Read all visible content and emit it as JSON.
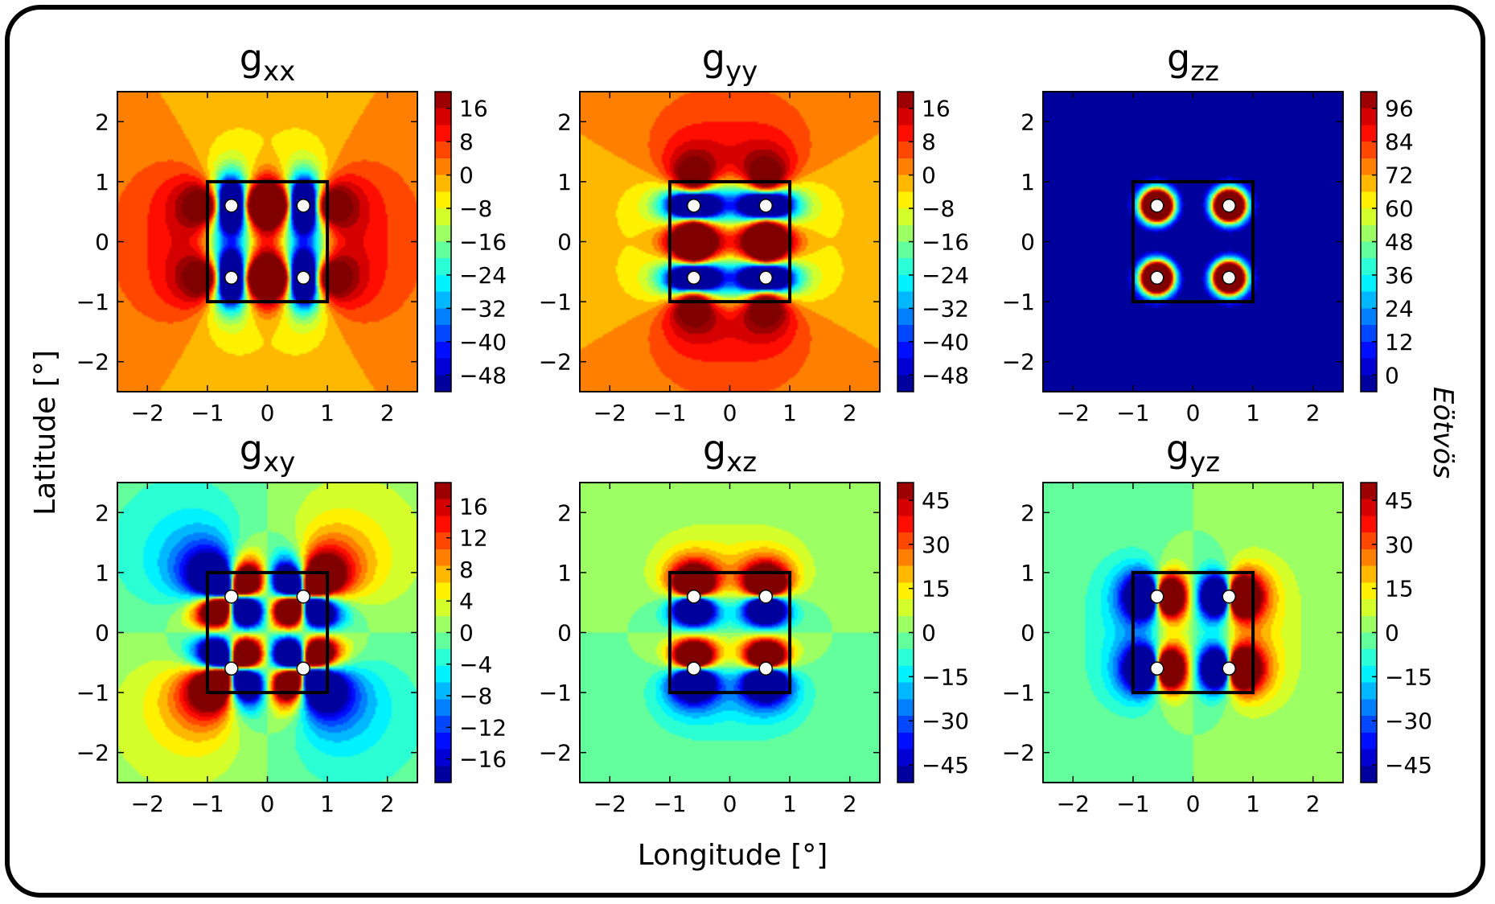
{
  "figure": {
    "xlabel": "Longitude [°]",
    "ylabel": "Latitude [°]",
    "colorbar_label": "Eötvös"
  },
  "chart_data": [
    {
      "type": "heatmap",
      "component": "gxx",
      "title": {
        "base": "g",
        "sub": "xx"
      },
      "xlim": [
        -2.5,
        2.5
      ],
      "ylim": [
        -2.5,
        2.5
      ],
      "xticks": [
        "−2",
        "−1",
        "0",
        "1",
        "2"
      ],
      "yticks": [
        "−2",
        "−1",
        "0",
        "1",
        "2"
      ],
      "colorbar": {
        "min": -52,
        "max": 20,
        "ticks": [
          16,
          8,
          0,
          -8,
          -16,
          -24,
          -32,
          -40,
          -48
        ],
        "tick_labels": [
          "16",
          "8",
          "0",
          "−8",
          "−16",
          "−24",
          "−32",
          "−40",
          "−48"
        ]
      },
      "masses": [
        [
          -0.6,
          0.6
        ],
        [
          0.6,
          0.6
        ],
        [
          -0.6,
          -0.6
        ],
        [
          0.6,
          -0.6
        ]
      ],
      "box": [
        -1,
        1,
        -1,
        1
      ]
    },
    {
      "type": "heatmap",
      "component": "gyy",
      "title": {
        "base": "g",
        "sub": "yy"
      },
      "xlim": [
        -2.5,
        2.5
      ],
      "ylim": [
        -2.5,
        2.5
      ],
      "xticks": [
        "−2",
        "−1",
        "0",
        "1",
        "2"
      ],
      "yticks": [
        "−2",
        "−1",
        "0",
        "1",
        "2"
      ],
      "colorbar": {
        "min": -52,
        "max": 20,
        "ticks": [
          16,
          8,
          0,
          -8,
          -16,
          -24,
          -32,
          -40,
          -48
        ],
        "tick_labels": [
          "16",
          "8",
          "0",
          "−8",
          "−16",
          "−24",
          "−32",
          "−40",
          "−48"
        ]
      },
      "masses": [
        [
          -0.6,
          0.6
        ],
        [
          0.6,
          0.6
        ],
        [
          -0.6,
          -0.6
        ],
        [
          0.6,
          -0.6
        ]
      ],
      "box": [
        -1,
        1,
        -1,
        1
      ]
    },
    {
      "type": "heatmap",
      "component": "gzz",
      "title": {
        "base": "g",
        "sub": "zz"
      },
      "xlim": [
        -2.5,
        2.5
      ],
      "ylim": [
        -2.5,
        2.5
      ],
      "xticks": [
        "−2",
        "−1",
        "0",
        "1",
        "2"
      ],
      "yticks": [
        "−2",
        "−1",
        "0",
        "1",
        "2"
      ],
      "colorbar": {
        "min": -6,
        "max": 102,
        "ticks": [
          96,
          84,
          72,
          60,
          48,
          36,
          24,
          12,
          0
        ],
        "tick_labels": [
          "96",
          "84",
          "72",
          "60",
          "48",
          "36",
          "24",
          "12",
          "0"
        ]
      },
      "masses": [
        [
          -0.6,
          0.6
        ],
        [
          0.6,
          0.6
        ],
        [
          -0.6,
          -0.6
        ],
        [
          0.6,
          -0.6
        ]
      ],
      "box": [
        -1,
        1,
        -1,
        1
      ]
    },
    {
      "type": "heatmap",
      "component": "gxy",
      "title": {
        "base": "g",
        "sub": "xy"
      },
      "xlim": [
        -2.5,
        2.5
      ],
      "ylim": [
        -2.5,
        2.5
      ],
      "xticks": [
        "−2",
        "−1",
        "0",
        "1",
        "2"
      ],
      "yticks": [
        "−2",
        "−1",
        "0",
        "1",
        "2"
      ],
      "colorbar": {
        "min": -19,
        "max": 19,
        "ticks": [
          16,
          12,
          8,
          4,
          0,
          -4,
          -8,
          -12,
          -16
        ],
        "tick_labels": [
          "16",
          "12",
          "8",
          "4",
          "0",
          "−4",
          "−8",
          "−12",
          "−16"
        ]
      },
      "masses": [
        [
          -0.6,
          0.6
        ],
        [
          0.6,
          0.6
        ],
        [
          -0.6,
          -0.6
        ],
        [
          0.6,
          -0.6
        ]
      ],
      "box": [
        -1,
        1,
        -1,
        1
      ]
    },
    {
      "type": "heatmap",
      "component": "gxz",
      "title": {
        "base": "g",
        "sub": "xz"
      },
      "xlim": [
        -2.5,
        2.5
      ],
      "ylim": [
        -2.5,
        2.5
      ],
      "xticks": [
        "−2",
        "−1",
        "0",
        "1",
        "2"
      ],
      "yticks": [
        "−2",
        "−1",
        "0",
        "1",
        "2"
      ],
      "colorbar": {
        "min": -51,
        "max": 51,
        "ticks": [
          45,
          30,
          15,
          0,
          -15,
          -30,
          -45
        ],
        "tick_labels": [
          "45",
          "30",
          "15",
          "0",
          "−15",
          "−30",
          "−45"
        ]
      },
      "masses": [
        [
          -0.6,
          0.6
        ],
        [
          0.6,
          0.6
        ],
        [
          -0.6,
          -0.6
        ],
        [
          0.6,
          -0.6
        ]
      ],
      "box": [
        -1,
        1,
        -1,
        1
      ]
    },
    {
      "type": "heatmap",
      "component": "gyz",
      "title": {
        "base": "g",
        "sub": "yz"
      },
      "xlim": [
        -2.5,
        2.5
      ],
      "ylim": [
        -2.5,
        2.5
      ],
      "xticks": [
        "−2",
        "−1",
        "0",
        "1",
        "2"
      ],
      "yticks": [
        "−2",
        "−1",
        "0",
        "1",
        "2"
      ],
      "colorbar": {
        "min": -51,
        "max": 51,
        "ticks": [
          45,
          30,
          15,
          0,
          -15,
          -30,
          -45
        ],
        "tick_labels": [
          "45",
          "30",
          "15",
          "0",
          "−15",
          "−30",
          "−45"
        ]
      },
      "masses": [
        [
          -0.6,
          0.6
        ],
        [
          0.6,
          0.6
        ],
        [
          -0.6,
          -0.6
        ],
        [
          0.6,
          -0.6
        ]
      ],
      "box": [
        -1,
        1,
        -1,
        1
      ]
    }
  ]
}
